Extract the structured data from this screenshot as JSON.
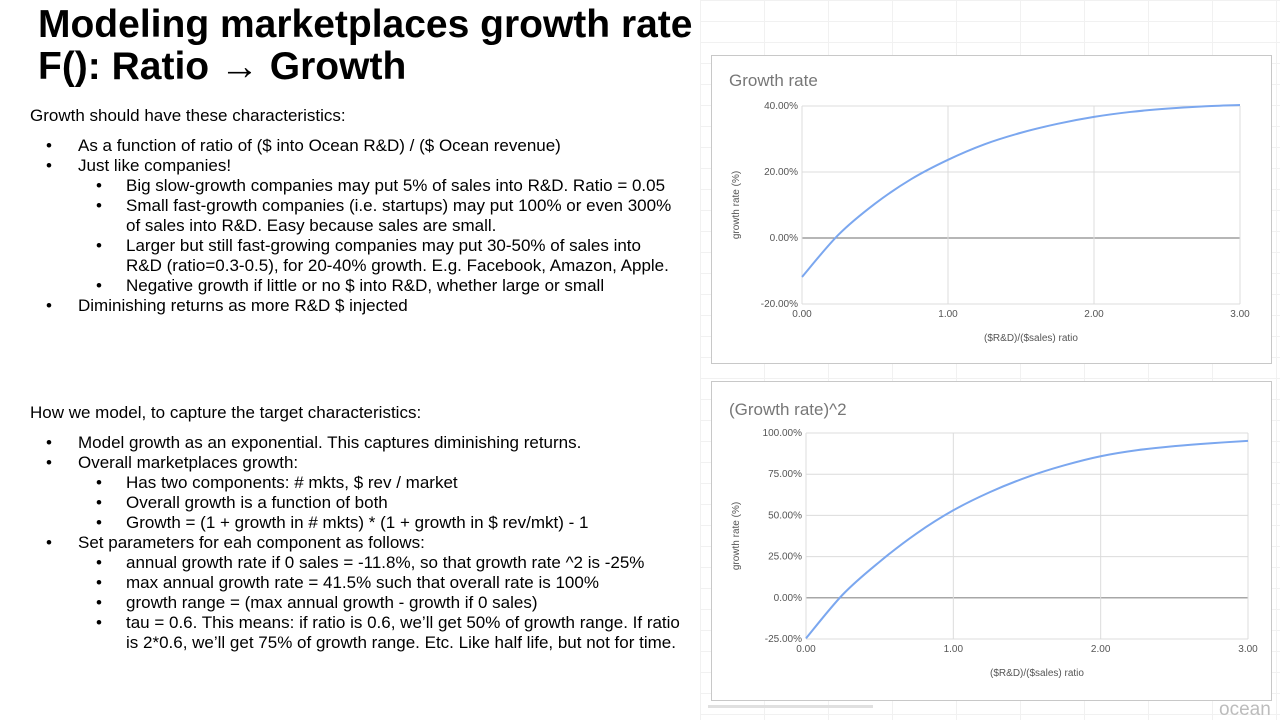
{
  "slide": {
    "title_line1": "Modeling marketplaces growth rate",
    "title_line2": "F(): Ratio → Growth",
    "logo": "ocean"
  },
  "section1": {
    "heading": "Growth should have these characteristics:",
    "items": [
      {
        "level": 1,
        "text": "As a function of ratio of ($ into Ocean R&D) /  ($ Ocean revenue)"
      },
      {
        "level": 1,
        "text": "Just like companies!"
      },
      {
        "level": 2,
        "text": "Big slow-growth companies may put 5% of sales into R&D. Ratio = 0.05"
      },
      {
        "level": 2,
        "text": "Small fast-growth companies (i.e. startups) may put 100% or even 300% of sales into R&D. Easy because sales are small."
      },
      {
        "level": 2,
        "text": "Larger but still fast-growing companies may put 30-50% of sales into R&D (ratio=0.3-0.5), for 20-40% growth. E.g. Facebook, Amazon, Apple."
      },
      {
        "level": 2,
        "text": "Negative growth if little or no $ into R&D, whether large or small"
      },
      {
        "level": 1,
        "text": "Diminishing returns as more R&D $ injected"
      }
    ]
  },
  "section2": {
    "heading": "How we model, to capture the target characteristics:",
    "items": [
      {
        "level": 1,
        "text": "Model growth as an exponential. This captures diminishing returns."
      },
      {
        "level": 1,
        "text": "Overall marketplaces growth:"
      },
      {
        "level": 2,
        "text": "Has two components: # mkts, $ rev / market"
      },
      {
        "level": 2,
        "text": "Overall growth is a function of both"
      },
      {
        "level": 2,
        "text": "Growth = (1 + growth in # mkts) * (1 + growth in $ rev/mkt) - 1"
      },
      {
        "level": 1,
        "text": "Set parameters for eah component as follows:"
      },
      {
        "level": 2,
        "text": "annual growth rate if 0 sales = -11.8%, so that growth rate ^2 is -25%"
      },
      {
        "level": 2,
        "text": "max annual growth rate = 41.5% such that overall rate is 100%"
      },
      {
        "level": 2,
        "text": "growth range = (max annual growth - growth if 0 sales)"
      },
      {
        "level": 2,
        "text": "tau = 0.6. This means: if ratio is 0.6, we’ll get 50% of growth range. If ratio is 2*0.6, we’ll get 75% of growth range. Etc. Like half life, but not for time."
      }
    ]
  },
  "colors": {
    "line": "#7ba7ef",
    "grid": "#dcdcdc",
    "zero_line": "#8a8a8a",
    "title": "#777777",
    "tick": "#555555"
  },
  "chart_data": [
    {
      "type": "line",
      "title": "Growth rate",
      "xlabel": "($R&D)/($sales) ratio",
      "ylabel": "growth rate (%)",
      "xlim": [
        0,
        3
      ],
      "ylim": [
        -20,
        40
      ],
      "x_ticks": [
        0,
        1,
        2,
        3
      ],
      "x_tick_labels": [
        "0.00",
        "1.00",
        "2.00",
        "3.00"
      ],
      "y_ticks": [
        -20,
        0,
        20,
        40
      ],
      "y_tick_labels": [
        "-20.00%",
        "0.00%",
        "20.00%",
        "40.00%"
      ],
      "grid": true,
      "x": [
        0,
        0.25,
        0.5,
        0.75,
        1.0,
        1.25,
        1.5,
        1.75,
        2.0,
        2.25,
        2.5,
        2.75,
        3.0
      ],
      "series": [
        {
          "values": [
            -11.8,
            1.0,
            10.4,
            17.9,
            23.7,
            28.4,
            31.9,
            34.6,
            36.7,
            38.2,
            39.2,
            39.9,
            40.3
          ]
        }
      ]
    },
    {
      "type": "line",
      "title": "(Growth rate)^2",
      "xlabel": "($R&D)/($sales) ratio",
      "ylabel": "growth rate (%)",
      "xlim": [
        0,
        3
      ],
      "ylim": [
        -25,
        100
      ],
      "x_ticks": [
        0,
        1,
        2,
        3
      ],
      "x_tick_labels": [
        "0.00",
        "1.00",
        "2.00",
        "3.00"
      ],
      "y_ticks": [
        -25,
        0,
        25,
        50,
        75,
        100
      ],
      "y_tick_labels": [
        "-25.00%",
        "0.00%",
        "25.00%",
        "50.00%",
        "75.00%",
        "100.00%"
      ],
      "grid": true,
      "x": [
        0,
        0.25,
        0.5,
        0.75,
        1.0,
        1.25,
        1.5,
        1.75,
        2.0,
        2.25,
        2.5,
        2.75,
        3.0
      ],
      "series": [
        {
          "values": [
            -24.6,
            2.0,
            21.9,
            39.0,
            53.1,
            64.2,
            73.2,
            80.3,
            85.9,
            89.6,
            92.0,
            93.8,
            95.2
          ]
        }
      ]
    }
  ]
}
